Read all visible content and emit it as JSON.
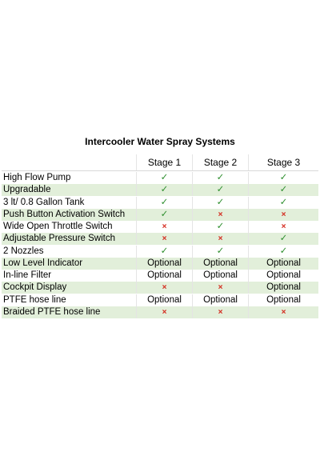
{
  "header": {
    "title": "Intercooler Water Spray Systems"
  },
  "marks": {
    "yes": "✓",
    "no": "×"
  },
  "table": {
    "columns": [
      "Stage 1",
      "Stage 2",
      "Stage 3"
    ],
    "rows": [
      [
        "High Flow Pump",
        "✓",
        "✓",
        "✓"
      ],
      [
        "Upgradable",
        "✓",
        "✓",
        "✓"
      ],
      [
        "3 lt/ 0.8 Gallon Tank",
        "✓",
        "✓",
        "✓"
      ],
      [
        "Push Button Activation Switch",
        "✓",
        "×",
        "×"
      ],
      [
        "Wide Open Throttle Switch",
        "×",
        "✓",
        "×"
      ],
      [
        "Adjustable Pressure Switch",
        "×",
        "×",
        "✓"
      ],
      [
        "2 Nozzles",
        "✓",
        "✓",
        "✓"
      ],
      [
        "Low Level Indicator",
        "Optional",
        "Optional",
        "Optional"
      ],
      [
        "In-line Filter",
        "Optional",
        "Optional",
        "Optional"
      ],
      [
        "Cockpit Display",
        "×",
        "×",
        "Optional"
      ],
      [
        "PTFE hose line",
        "Optional",
        "Optional",
        "Optional"
      ],
      [
        "Braided PTFE hose line",
        "×",
        "×",
        "×"
      ]
    ]
  }
}
